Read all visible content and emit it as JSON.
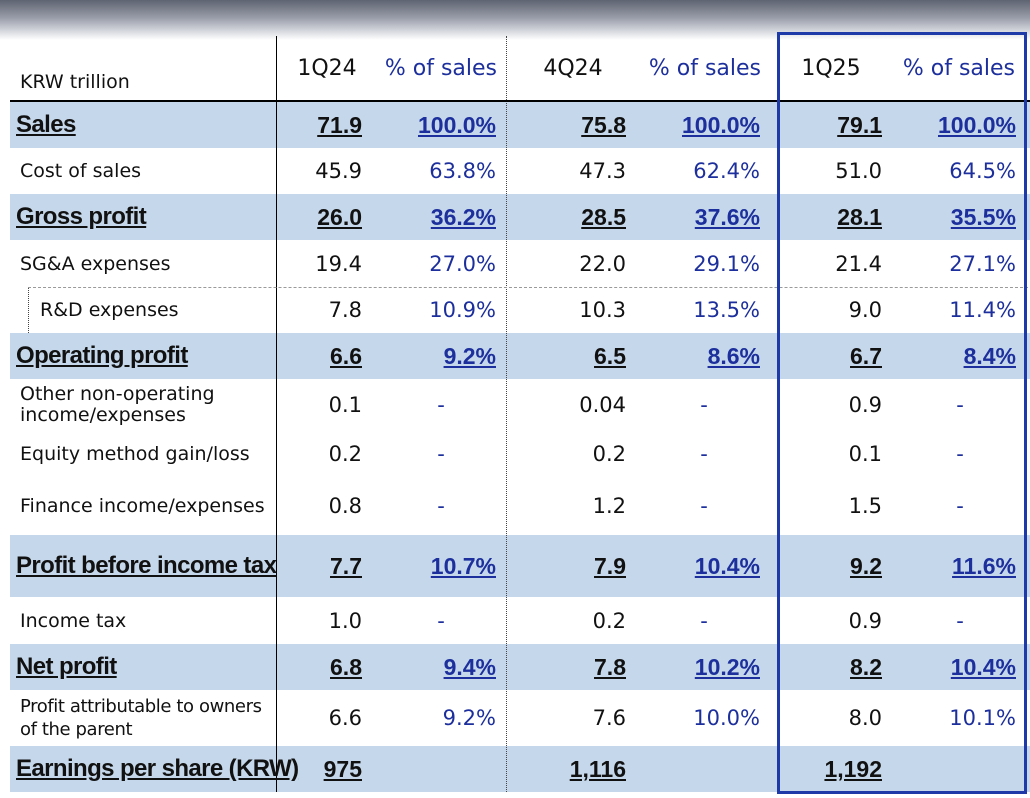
{
  "table": {
    "unit_label": "KRW trillion",
    "columns": [
      {
        "label": "1Q24"
      },
      {
        "label": "% of sales"
      },
      {
        "label": "4Q24"
      },
      {
        "label": "% of sales"
      },
      {
        "label": "1Q25"
      },
      {
        "label": "% of sales"
      }
    ],
    "rows": [
      {
        "label": "Sales",
        "values": [
          "71.9",
          "100.0%",
          "75.8",
          "100.0%",
          "79.1",
          "100.0%"
        ]
      },
      {
        "label": "Cost of sales",
        "values": [
          "45.9",
          "63.8%",
          "47.3",
          "62.4%",
          "51.0",
          "64.5%"
        ]
      },
      {
        "label": "Gross profit",
        "values": [
          "26.0",
          "36.2%",
          "28.5",
          "37.6%",
          "28.1",
          "35.5%"
        ]
      },
      {
        "label": "SG&A expenses",
        "values": [
          "19.4",
          "27.0%",
          "22.0",
          "29.1%",
          "21.4",
          "27.1%"
        ]
      },
      {
        "label": "R&D expenses",
        "values": [
          "7.8",
          "10.9%",
          "10.3",
          "13.5%",
          "9.0",
          "11.4%"
        ]
      },
      {
        "label": "Operating profit",
        "values": [
          "6.6",
          "9.2%",
          "6.5",
          "8.6%",
          "6.7",
          "8.4%"
        ]
      },
      {
        "label": "Other non-operating income/expenses",
        "values": [
          "0.1",
          "-",
          "0.04",
          "-",
          "0.9",
          "-"
        ]
      },
      {
        "label": "Equity method gain/loss",
        "values": [
          "0.2",
          "-",
          "0.2",
          "-",
          "0.1",
          "-"
        ]
      },
      {
        "label": "Finance income/expenses",
        "values": [
          "0.8",
          "-",
          "1.2",
          "-",
          "1.5",
          "-"
        ]
      },
      {
        "label": "Profit before income tax",
        "values": [
          "7.7",
          "10.7%",
          "7.9",
          "10.4%",
          "9.2",
          "11.6%"
        ]
      },
      {
        "label": "Income tax",
        "values": [
          "1.0",
          "-",
          "0.2",
          "-",
          "0.9",
          "-"
        ]
      },
      {
        "label": "Net profit",
        "values": [
          "6.8",
          "9.4%",
          "7.8",
          "10.2%",
          "8.2",
          "10.4%"
        ]
      },
      {
        "label": "Profit attributable to owners of the parent",
        "values": [
          "6.6",
          "9.2%",
          "7.6",
          "10.0%",
          "8.0",
          "10.1%"
        ]
      },
      {
        "label": "Earnings per share (KRW)",
        "values": [
          "975",
          "",
          "1,116",
          "",
          "1,192",
          ""
        ]
      }
    ]
  },
  "colors": {
    "highlight_row": "#c5d7ea",
    "percent_text": "#1c2f9c",
    "focus_box": "#1e3aa8"
  }
}
